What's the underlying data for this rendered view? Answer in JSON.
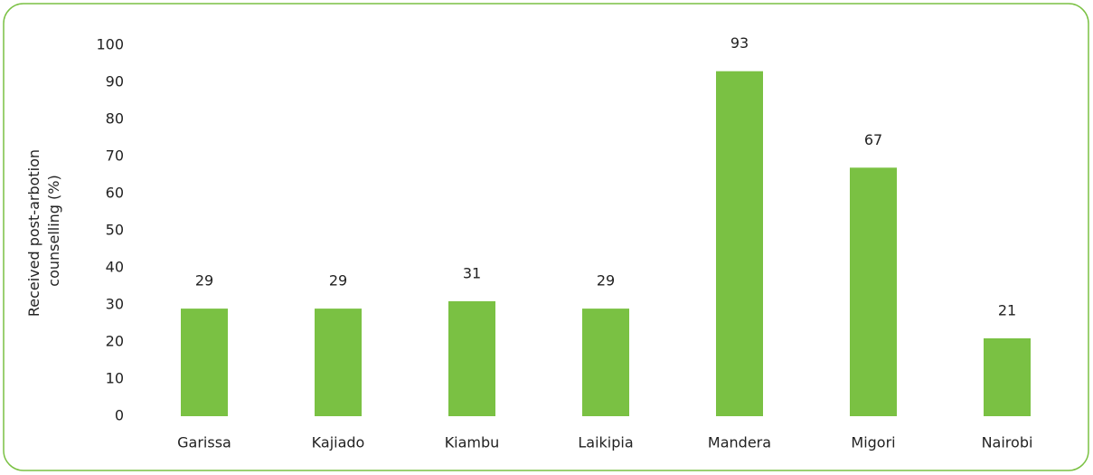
{
  "chart_data": {
    "type": "bar",
    "y_label": [
      "Received post-arbotion",
      "counselling (%)"
    ],
    "categories": [
      "Garissa",
      "Kajiado",
      "Kiambu",
      "Laikipia",
      "Mandera",
      "Migori",
      "Nairobi"
    ],
    "values": [
      29,
      29,
      31,
      29,
      93,
      67,
      21
    ],
    "color": "#7ac143",
    "ylim": [
      0,
      100
    ],
    "yticks": [
      0,
      10,
      20,
      30,
      40,
      50,
      60,
      70,
      80,
      90,
      100
    ],
    "grid": false
  }
}
